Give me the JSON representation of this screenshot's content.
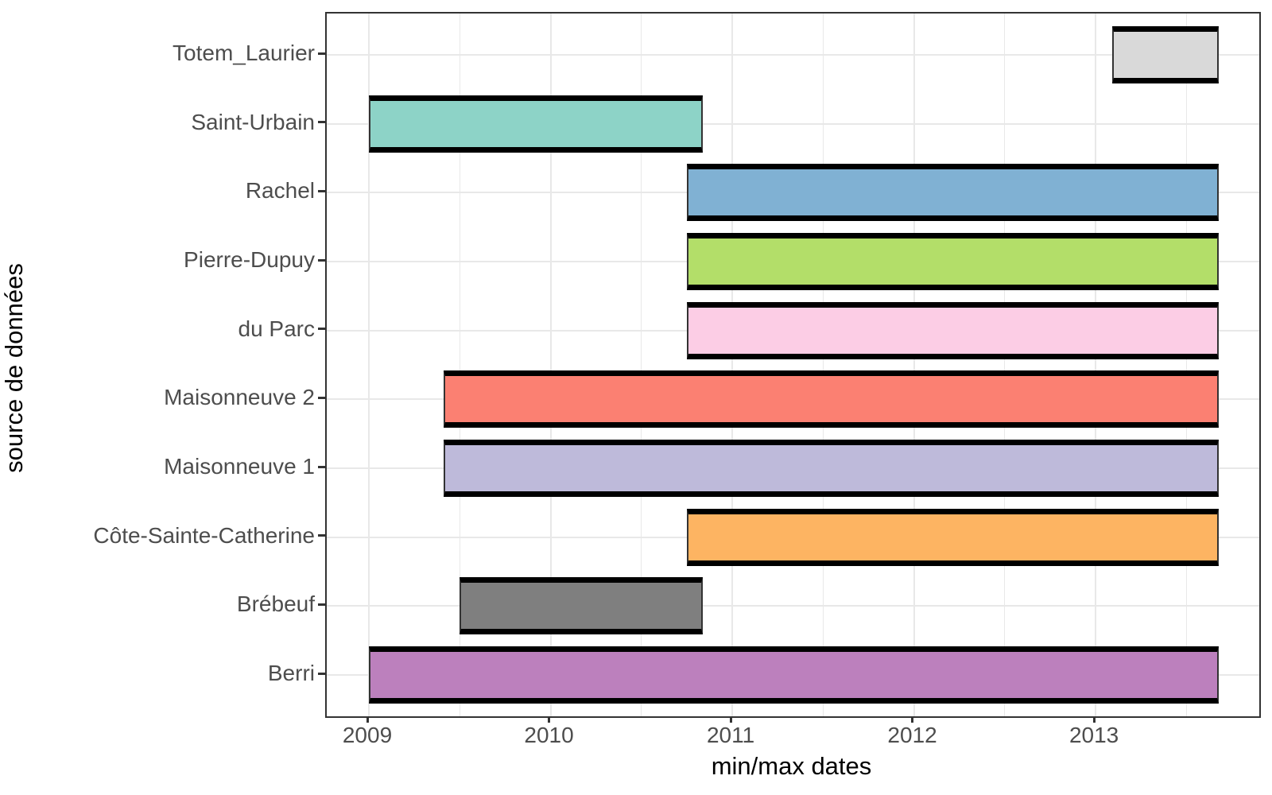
{
  "chart_data": {
    "type": "bar",
    "variant": "horizontal-range-crossbar",
    "title": "",
    "xlabel": "min/max dates",
    "ylabel": "source de données",
    "legend": "none",
    "grid": true,
    "x_axis": {
      "xlim": [
        2008.768,
        2013.901
      ],
      "major_ticks": [
        2009,
        2010,
        2011,
        2012,
        2013
      ],
      "tick_labels": [
        "2009",
        "2010",
        "2011",
        "2012",
        "2013"
      ],
      "minor_ticks": [
        2009.5,
        2010.5,
        2011.5,
        2012.5,
        2013.5
      ]
    },
    "y_axis": {
      "n_categories": 10,
      "expand": 0.6,
      "categories_top_to_bottom": [
        "Totem_Laurier",
        "Saint-Urbain",
        "Rachel",
        "Pierre-Dupuy",
        "du Parc",
        "Maisonneuve 2",
        "Maisonneuve 1",
        "Côte-Sainte-Catherine",
        "Brébeuf",
        "Berri"
      ]
    },
    "series": [
      {
        "label": "Totem_Laurier",
        "start": 2013.09,
        "end": 2013.68,
        "start_approx": "2013-02",
        "end_approx": "2013-09",
        "fill": "#D9D9D9"
      },
      {
        "label": "Saint-Urbain",
        "start": 2009.0,
        "end": 2010.84,
        "start_approx": "2009-01",
        "end_approx": "2010-11",
        "fill": "#8DD3C7"
      },
      {
        "label": "Rachel",
        "start": 2010.75,
        "end": 2013.68,
        "start_approx": "2010-10",
        "end_approx": "2013-09",
        "fill": "#80B1D3"
      },
      {
        "label": "Pierre-Dupuy",
        "start": 2010.75,
        "end": 2013.68,
        "start_approx": "2010-10",
        "end_approx": "2013-09",
        "fill": "#B3DE69"
      },
      {
        "label": "du Parc",
        "start": 2010.75,
        "end": 2013.68,
        "start_approx": "2010-10",
        "end_approx": "2013-09",
        "fill": "#FCCDE5"
      },
      {
        "label": "Maisonneuve 2",
        "start": 2009.41,
        "end": 2013.68,
        "start_approx": "2009-05",
        "end_approx": "2013-09",
        "fill": "#FB8072"
      },
      {
        "label": "Maisonneuve 1",
        "start": 2009.41,
        "end": 2013.68,
        "start_approx": "2009-05",
        "end_approx": "2013-09",
        "fill": "#BEBADA"
      },
      {
        "label": "Côte-Sainte-Catherine",
        "start": 2010.75,
        "end": 2013.68,
        "start_approx": "2010-10",
        "end_approx": "2013-09",
        "fill": "#FDB462"
      },
      {
        "label": "Brébeuf",
        "start": 2009.5,
        "end": 2010.84,
        "start_approx": "2009-07",
        "end_approx": "2010-11",
        "fill": "#7F7F7F"
      },
      {
        "label": "Berri",
        "start": 2009.0,
        "end": 2013.68,
        "start_approx": "2009-01",
        "end_approx": "2013-09",
        "fill": "#BC80BD"
      }
    ],
    "bar_edge_color": "#000000",
    "bar_side_edge_color": "#333333"
  },
  "style_colors": {
    "background": "#FFFFFF",
    "panel_border": "#333333",
    "gridline": "#E8E8E8",
    "axis_text": "#4D4D4D",
    "axis_title": "#000000",
    "tick_mark": "#333333"
  }
}
